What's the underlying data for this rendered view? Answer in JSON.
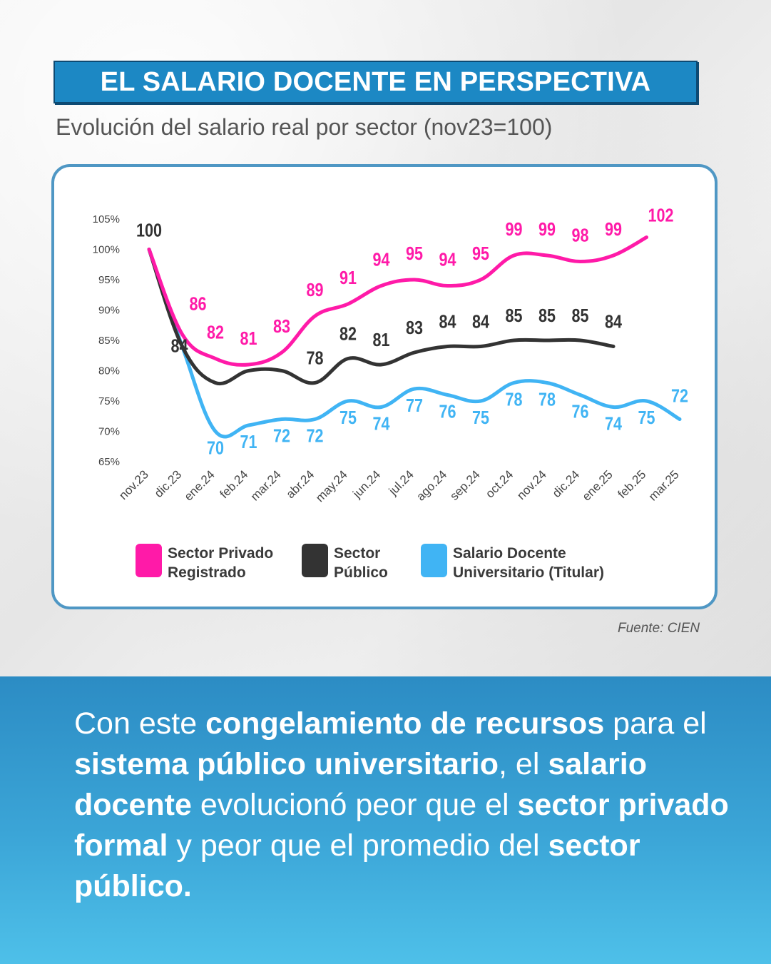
{
  "header": {
    "title": "EL SALARIO DOCENTE EN PERSPECTIVA",
    "subtitle": "Evolución del salario real por sector (nov23=100)"
  },
  "colors": {
    "privado": "#ff1aa8",
    "publico": "#333333",
    "docente": "#40b4f4",
    "title_bg": "#1c88c4"
  },
  "chart_data": {
    "type": "line",
    "title": "",
    "xlabel": "",
    "ylabel": "",
    "categories": [
      "nov.23",
      "dic.23",
      "ene.24",
      "feb.24",
      "mar.24",
      "abr.24",
      "may.24",
      "jun.24",
      "jul.24",
      "ago.24",
      "sep.24",
      "oct.24",
      "nov.24",
      "dic.24",
      "ene.25",
      "feb.25",
      "mar.25"
    ],
    "y_ticks": [
      "105%",
      "100%",
      "95%",
      "90%",
      "85%",
      "80%",
      "75%",
      "70%",
      "65%"
    ],
    "ylim": [
      65,
      105
    ],
    "grid": false,
    "legend_position": "bottom",
    "series": [
      {
        "name": "Sector Privado Registrado",
        "color": "#ff1aa8",
        "values": [
          100,
          86,
          82,
          81,
          83,
          89,
          91,
          94,
          95,
          94,
          95,
          99,
          99,
          98,
          99,
          102,
          null
        ],
        "labels": [
          "",
          "86",
          "82",
          "81",
          "83",
          "89",
          "91",
          "94",
          "95",
          "94",
          "95",
          "99",
          "99",
          "98",
          "99",
          "102",
          ""
        ]
      },
      {
        "name": "Sector Público",
        "color": "#333333",
        "values": [
          100,
          84,
          78,
          80,
          80,
          78,
          82,
          81,
          83,
          84,
          84,
          85,
          85,
          85,
          84,
          null,
          null
        ],
        "labels": [
          "100",
          "84",
          "",
          "",
          "",
          "78",
          "82",
          "81",
          "83",
          "84",
          "84",
          "85",
          "85",
          "85",
          "84",
          "",
          ""
        ]
      },
      {
        "name": "Salario Docente Universitario (Titular)",
        "color": "#40b4f4",
        "values": [
          100,
          84,
          70,
          71,
          72,
          72,
          75,
          74,
          77,
          76,
          75,
          78,
          78,
          76,
          74,
          75,
          72
        ],
        "labels": [
          "",
          "",
          "70",
          "71",
          "72",
          "72",
          "75",
          "74",
          "77",
          "76",
          "75",
          "78",
          "78",
          "76",
          "74",
          "75",
          "72"
        ]
      }
    ]
  },
  "legend": [
    {
      "label": "Sector Privado\nRegistrado",
      "color": "#ff1aa8"
    },
    {
      "label": "Sector\nPúblico",
      "color": "#333333"
    },
    {
      "label": "Salario Docente\nUniversitario (Titular)",
      "color": "#40b4f4"
    }
  ],
  "source": "Fuente: CIEN",
  "bottom": {
    "segments": [
      {
        "text": "Con este ",
        "bold": false
      },
      {
        "text": "congelamiento de recursos",
        "bold": true
      },
      {
        "text": " para el ",
        "bold": false
      },
      {
        "text": "sistema público universitario",
        "bold": true
      },
      {
        "text": ", el ",
        "bold": false
      },
      {
        "text": "salario docente",
        "bold": true
      },
      {
        "text": " evolucionó peor que el ",
        "bold": false
      },
      {
        "text": "sector privado formal",
        "bold": true
      },
      {
        "text": " y peor que el promedio del ",
        "bold": false
      },
      {
        "text": "sector público.",
        "bold": true
      }
    ]
  }
}
